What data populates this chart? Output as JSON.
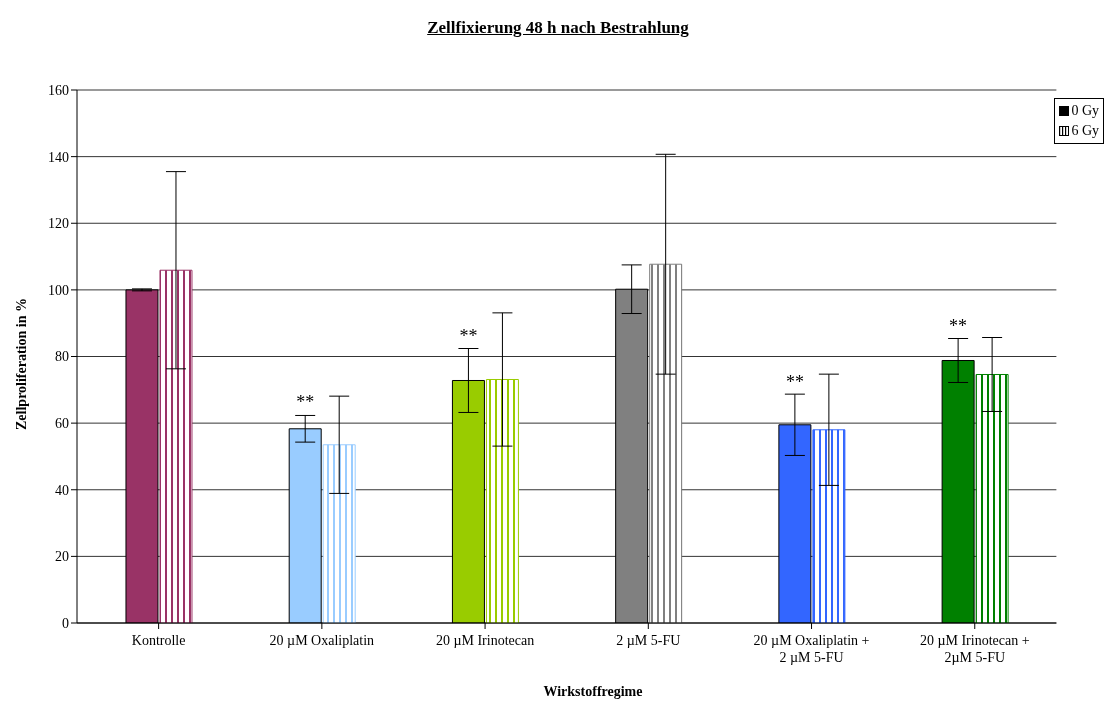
{
  "chart_data": {
    "type": "bar",
    "title": "Zellfixierung 48 h nach Bestrahlung",
    "xlabel": "Wirkstoffregime",
    "ylabel": "Zellproliferation in %",
    "categories": [
      "Kontrolle",
      "20 µM Oxaliplatin",
      "20 µM Irinotecan",
      "2 µM 5-FU",
      "20 µM Oxaliplatin +\n2 µM 5-FU",
      "20 µM Irinotecan +\n2µM 5-FU"
    ],
    "series": [
      {
        "name": "0 Gy",
        "color": "#000000",
        "colors": [
          "#993366",
          "#99ccff",
          "#99cc00",
          "#808080",
          "#3366ff",
          "#008000"
        ],
        "values": [
          100,
          58.3,
          72.8,
          100.2,
          59.5,
          78.8
        ],
        "errors": [
          0.3,
          4,
          9.6,
          7.3,
          9.2,
          6.6
        ],
        "value_labels": [
          null,
          "**",
          "**",
          null,
          "**",
          "**"
        ]
      },
      {
        "name": "6 Gy",
        "color": "#000000",
        "colors": [
          "#993366",
          "#99ccff",
          "#99cc00",
          "#808080",
          "#3366ff",
          "#008000"
        ],
        "values": [
          105.9,
          53.5,
          73.1,
          107.7,
          58,
          74.6
        ],
        "errors": [
          29.6,
          14.6,
          20,
          33,
          16.7,
          11.1
        ]
      }
    ],
    "ylim": [
      0,
      160
    ],
    "yticks": [
      0,
      20,
      40,
      60,
      80,
      100,
      120,
      140,
      160
    ],
    "grid": "y",
    "legend": "top right"
  }
}
